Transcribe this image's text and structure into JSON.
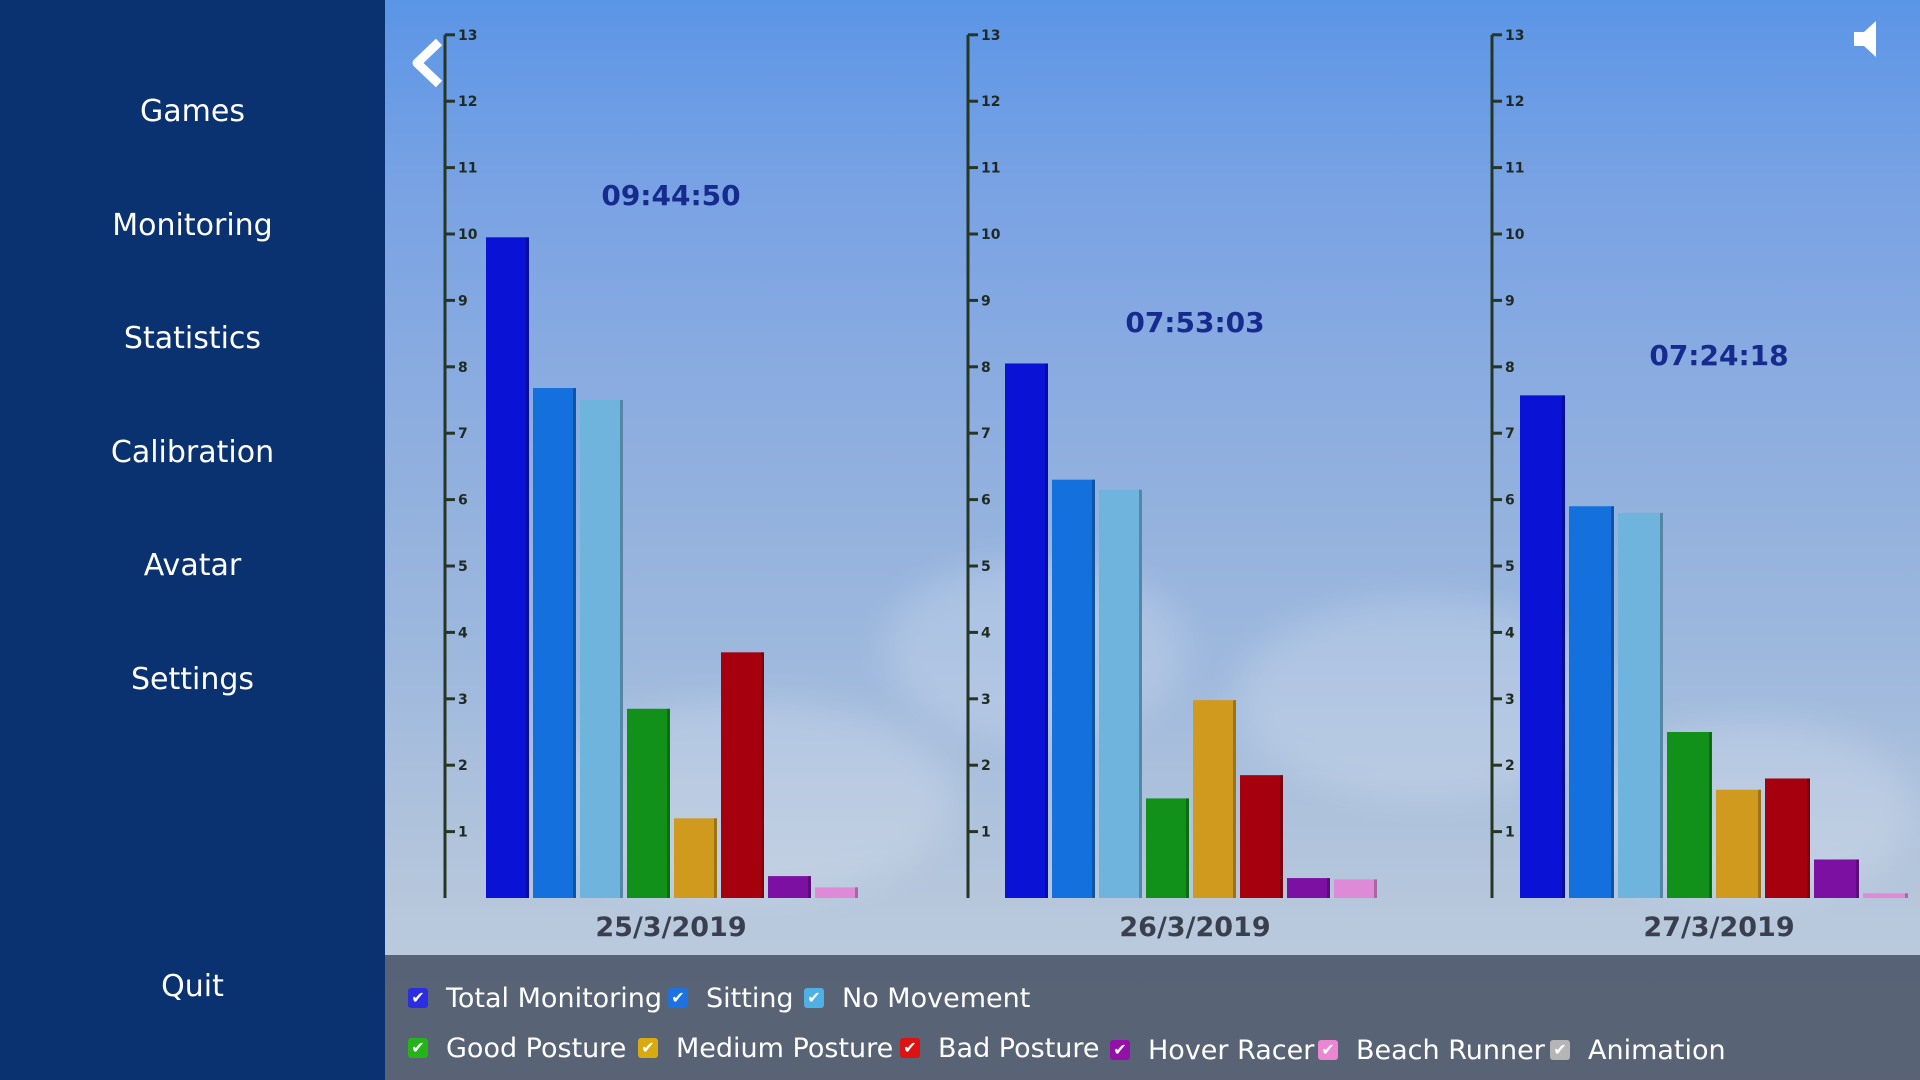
{
  "sidebar": {
    "items": [
      {
        "label": "Games"
      },
      {
        "label": "Monitoring"
      },
      {
        "label": "Statistics"
      },
      {
        "label": "Calibration"
      },
      {
        "label": "Avatar"
      },
      {
        "label": "Settings"
      }
    ],
    "quit_label": "Quit"
  },
  "toolbar": {
    "back_icon": "chevron-left-icon",
    "sound_icon": "speaker-icon"
  },
  "chart_data": [
    {
      "type": "bar",
      "ylim": [
        0,
        13
      ],
      "yticks": [
        "1",
        "2",
        "3",
        "4",
        "5",
        "6",
        "7",
        "8",
        "9",
        "10",
        "11",
        "12",
        "13"
      ],
      "date_label": "25/3/2019",
      "time_label": "09:44:50",
      "values": [
        9.95,
        7.68,
        7.5,
        2.85,
        1.2,
        3.7,
        0.33,
        0.16
      ]
    },
    {
      "type": "bar",
      "ylim": [
        0,
        13
      ],
      "yticks": [
        "1",
        "2",
        "3",
        "4",
        "5",
        "6",
        "7",
        "8",
        "9",
        "10",
        "11",
        "12",
        "13"
      ],
      "date_label": "26/3/2019",
      "time_label": "07:53:03",
      "values": [
        8.05,
        6.3,
        6.15,
        1.5,
        2.98,
        1.85,
        0.3,
        0.28
      ]
    },
    {
      "type": "bar",
      "ylim": [
        0,
        13
      ],
      "yticks": [
        "1",
        "2",
        "3",
        "4",
        "5",
        "6",
        "7",
        "8",
        "9",
        "10",
        "11",
        "12",
        "13"
      ],
      "date_label": "27/3/2019",
      "time_label": "07:24:18",
      "values": [
        7.57,
        5.9,
        5.8,
        2.5,
        1.63,
        1.8,
        0.58,
        0.07
      ]
    }
  ],
  "legend": {
    "items": [
      {
        "label": "Total Monitoring",
        "color": "#2a2ee0"
      },
      {
        "label": "Sitting",
        "color": "#1b72e0"
      },
      {
        "label": "No Movement",
        "color": "#4fb0e6"
      },
      {
        "label": "Good Posture",
        "color": "#25b31b"
      },
      {
        "label": "Medium Posture",
        "color": "#d9aa10"
      },
      {
        "label": "Bad Posture",
        "color": "#dd1313"
      },
      {
        "label": "Hover Racer",
        "color": "#9411a8"
      },
      {
        "label": "Beach Runner",
        "color": "#ea86d2"
      },
      {
        "label": "Animation",
        "color": "#b5b5b5"
      }
    ],
    "check_glyph": "✔"
  },
  "colors": {
    "sidebar_bg": "#0b3270",
    "time_label": "#172a8e",
    "date_label": "#3a3f4e",
    "axis": "#263624"
  },
  "bar_colors": [
    "#0a12d6",
    "#1370dc",
    "#6fb4dc",
    "#11911a",
    "#d09a1f",
    "#a6000f",
    "#7c10a3",
    "#df8ad6",
    "#b5b5b5"
  ]
}
